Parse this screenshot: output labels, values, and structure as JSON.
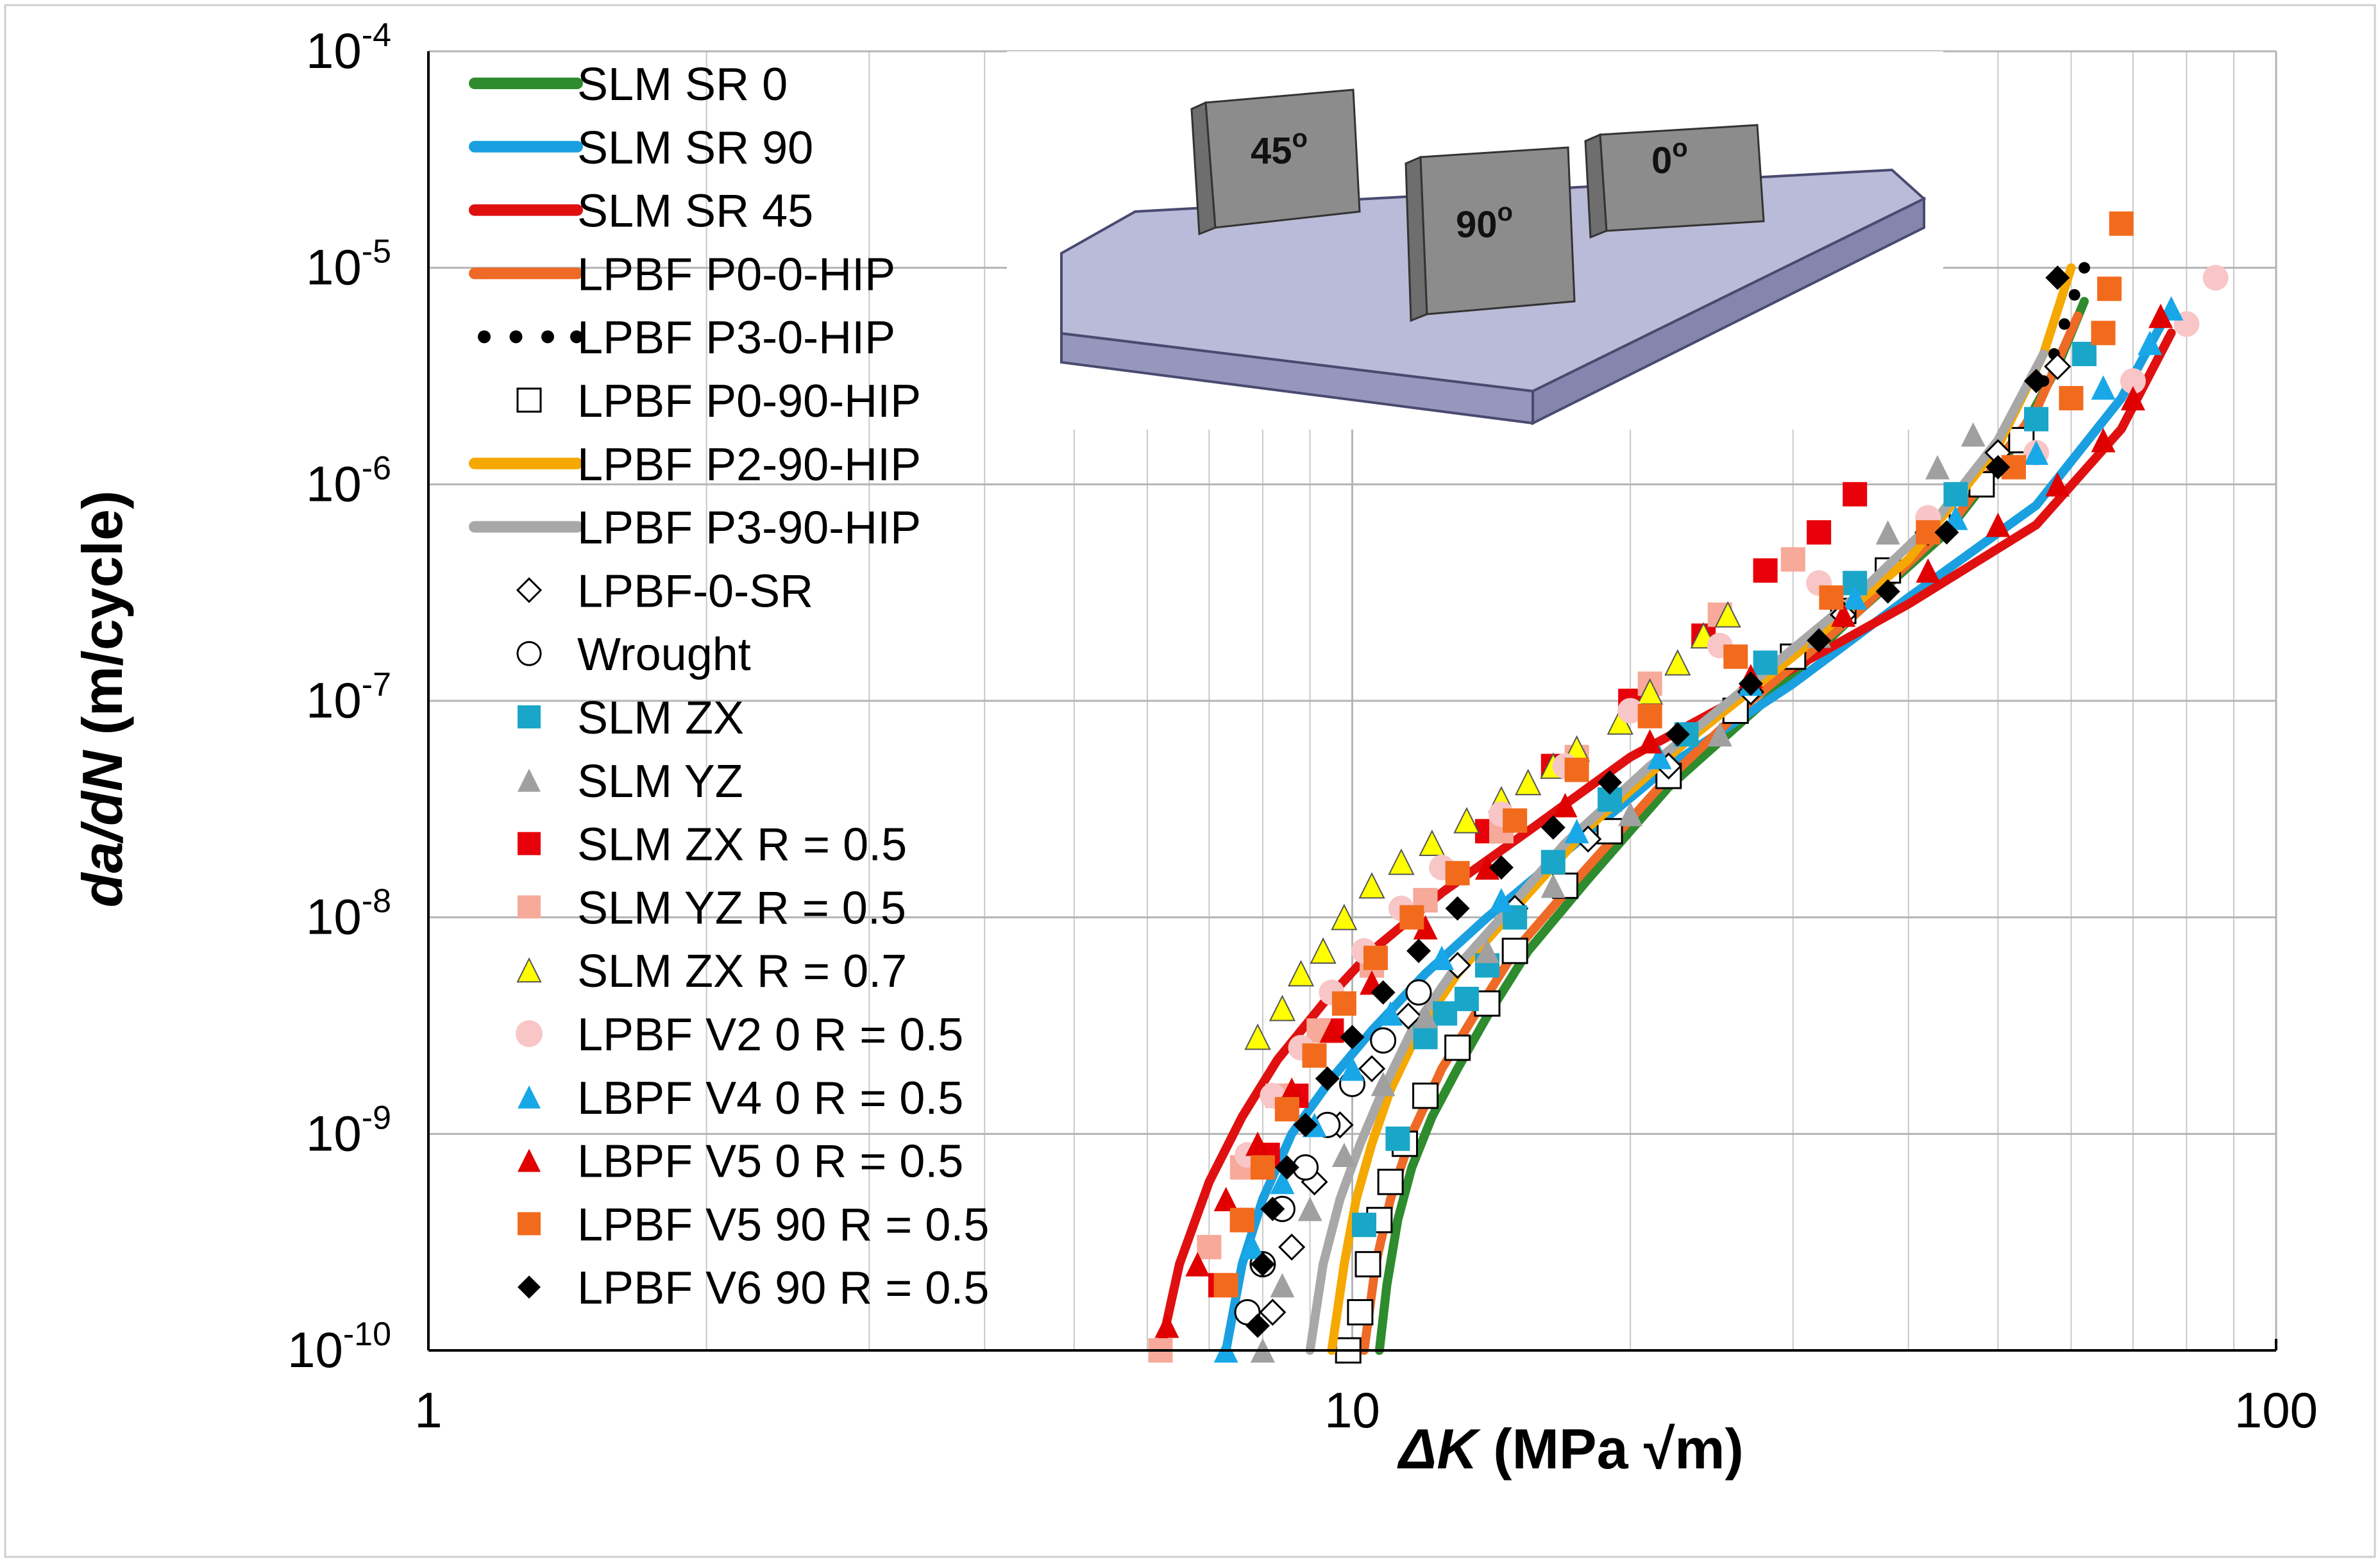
{
  "chart_data": {
    "type": "scatter",
    "title": "",
    "xlabel_main": "ΔK",
    "xlabel_unit": " (MPa √m)",
    "ylabel_italic": "da/dN",
    "ylabel_unit": " (m/cycle)",
    "xscale": "log",
    "yscale": "log",
    "xlim": [
      1,
      100
    ],
    "ylim": [
      1e-10,
      0.0001
    ],
    "x_ticks": [
      {
        "value": 1,
        "label": "1"
      },
      {
        "value": 10,
        "label": "10"
      },
      {
        "value": 100,
        "label": "100"
      }
    ],
    "y_ticks": [
      {
        "value": 1e-10,
        "mantissa": "10",
        "exp": "-10"
      },
      {
        "value": 1e-09,
        "mantissa": "10",
        "exp": "-9"
      },
      {
        "value": 1e-08,
        "mantissa": "10",
        "exp": "-8"
      },
      {
        "value": 1e-07,
        "mantissa": "10",
        "exp": "-7"
      },
      {
        "value": 1e-06,
        "mantissa": "10",
        "exp": "-6"
      },
      {
        "value": 1e-05,
        "mantissa": "10",
        "exp": "-5"
      },
      {
        "value": 0.0001,
        "mantissa": "10",
        "exp": "-4"
      }
    ],
    "grid": true,
    "legend_position": "top-left",
    "inset": {
      "description": "specimen build plate",
      "labels": [
        {
          "text": "45",
          "sup": "o"
        },
        {
          "text": "90",
          "sup": "o"
        },
        {
          "text": "0",
          "sup": "o"
        }
      ]
    },
    "series": [
      {
        "name": "SLM SR 0",
        "kind": "line",
        "color": "#2e8b2e",
        "x": [
          10.7,
          10.9,
          11.2,
          11.6,
          12.2,
          13.0,
          14.0,
          15.5,
          18.0,
          22.0,
          28.0,
          35.0,
          44.0,
          52.0,
          58.0,
          62.0
        ],
        "y": [
          1e-10,
          2e-10,
          4e-10,
          7e-10,
          1.2e-09,
          2e-09,
          3.5e-09,
          7e-09,
          1.5e-08,
          4e-08,
          1e-07,
          2.5e-07,
          6e-07,
          1.5e-06,
          3.5e-06,
          7e-06
        ]
      },
      {
        "name": "SLM SR 90",
        "kind": "line",
        "color": "#1aa0e0",
        "x": [
          7.3,
          7.6,
          8.0,
          8.6,
          9.5,
          10.5,
          12.0,
          14.0,
          17.0,
          22.0,
          30.0,
          40.0,
          55.0,
          68.0,
          76.0
        ],
        "y": [
          1e-10,
          2.5e-10,
          5e-10,
          1e-09,
          1.8e-09,
          3e-09,
          5.5e-09,
          1e-08,
          2e-08,
          5e-08,
          1.2e-07,
          3e-07,
          8e-07,
          2.5e-06,
          6e-06
        ]
      },
      {
        "name": "SLM SR 45",
        "kind": "line",
        "color": "#e01010",
        "x": [
          6.2,
          6.5,
          7.0,
          7.6,
          8.3,
          9.3,
          10.5,
          12.5,
          15.5,
          20.0,
          28.0,
          40.0,
          55.0,
          68.0,
          77.0
        ],
        "y": [
          1e-10,
          2.5e-10,
          6e-10,
          1.2e-09,
          2.2e-09,
          4e-09,
          7e-09,
          1.3e-08,
          2.5e-08,
          5.5e-08,
          1.2e-07,
          2.8e-07,
          6.5e-07,
          1.8e-06,
          5e-06
        ]
      },
      {
        "name": "LPBF P0-0-HIP",
        "kind": "line",
        "color": "#ee6a26",
        "x": [
          10.3,
          10.6,
          11.0,
          11.6,
          12.5,
          13.6,
          15.0,
          17.5,
          21.5,
          27.0,
          35.0,
          45.0,
          55.0,
          61.0
        ],
        "y": [
          1e-10,
          2.5e-10,
          5e-10,
          1e-09,
          2e-09,
          3.6e-09,
          7e-09,
          1.5e-08,
          4e-08,
          1e-07,
          2.5e-07,
          7e-07,
          2.2e-06,
          6e-06
        ]
      },
      {
        "name": "LPBF P3-0-HIP",
        "kind": "dotted",
        "color": "#000000",
        "x": [
          56.0,
          57.5,
          59.0,
          60.5,
          62.0
        ],
        "y": [
          3e-06,
          4e-06,
          5.5e-06,
          7.5e-06,
          1e-05
        ]
      },
      {
        "name": "LPBF P0-90-HIP",
        "kind": "marker",
        "marker": "square-open",
        "color": "#000000",
        "x": [
          9.9,
          10.2,
          10.4,
          10.7,
          11.0,
          11.4,
          12.0,
          13.0,
          14.0,
          15.0,
          17.0,
          19.0,
          22.0,
          26.0,
          30.0,
          34.0,
          38.0,
          43.0,
          48.0,
          53.0
        ],
        "y": [
          1e-10,
          1.5e-10,
          2.5e-10,
          4e-10,
          6e-10,
          9e-10,
          1.5e-09,
          2.5e-09,
          4e-09,
          7e-09,
          1.4e-08,
          2.5e-08,
          4.5e-08,
          9e-08,
          1.6e-07,
          2.6e-07,
          4e-07,
          6.5e-07,
          1e-06,
          1.6e-06
        ]
      },
      {
        "name": "LPBF P2-90-HIP",
        "kind": "line",
        "color": "#f5a800",
        "x": [
          9.5,
          9.8,
          10.1,
          10.5,
          11.0,
          11.8,
          13.0,
          15.0,
          18.0,
          23.0,
          30.0,
          40.0,
          50.0,
          56.0,
          60.0
        ],
        "y": [
          1e-10,
          2.5e-10,
          5e-10,
          9e-10,
          1.6e-09,
          3e-09,
          5.5e-09,
          1.1e-08,
          2.6e-08,
          6.5e-08,
          1.6e-07,
          4.5e-07,
          1.5e-06,
          4e-06,
          1e-05
        ]
      },
      {
        "name": "LPBF P3-90-HIP",
        "kind": "line",
        "color": "#a8a8a8",
        "x": [
          9.0,
          9.3,
          9.7,
          10.2,
          10.8,
          11.6,
          12.8,
          14.5,
          17.0,
          21.0,
          27.0,
          35.0,
          43.0,
          50.0,
          56.0
        ],
        "y": [
          1e-10,
          2.5e-10,
          5e-10,
          9e-10,
          1.6e-09,
          3e-09,
          5.5e-09,
          1e-08,
          2.2e-08,
          5e-08,
          1.2e-07,
          3e-07,
          7e-07,
          1.6e-06,
          4e-06
        ]
      },
      {
        "name": "LPBF-0-SR",
        "kind": "marker",
        "marker": "diamond-open",
        "color": "#000000",
        "x": [
          8.2,
          8.6,
          9.1,
          9.7,
          10.5,
          11.5,
          13.0,
          15.0,
          18.0,
          22.0,
          27.0,
          34.0,
          42.0,
          50.0,
          58.0
        ],
        "y": [
          1.5e-10,
          3e-10,
          6e-10,
          1.1e-09,
          2e-09,
          3.5e-09,
          6e-09,
          1.1e-08,
          2.3e-08,
          5e-08,
          1.1e-07,
          2.5e-07,
          6e-07,
          1.4e-06,
          3.5e-06
        ]
      },
      {
        "name": "Wrought",
        "kind": "marker",
        "marker": "circle-open",
        "color": "#000000",
        "x": [
          7.7,
          8.0,
          8.4,
          8.9,
          9.4,
          10.0,
          10.8,
          11.8
        ],
        "y": [
          1.5e-10,
          2.5e-10,
          4.5e-10,
          7e-10,
          1.1e-09,
          1.7e-09,
          2.7e-09,
          4.5e-09
        ]
      },
      {
        "name": "SLM ZX",
        "kind": "marker",
        "marker": "square",
        "color": "#1aa6c8",
        "x": [
          10.3,
          11.2,
          12.0,
          12.6,
          13.3,
          14.0,
          15.0,
          16.5,
          19.0,
          23.0,
          28.0,
          35.0,
          45.0,
          55.0,
          62.0
        ],
        "y": [
          3.8e-10,
          9.5e-10,
          2.8e-09,
          3.6e-09,
          4.2e-09,
          6e-09,
          1e-08,
          1.8e-08,
          3.5e-08,
          7e-08,
          1.5e-07,
          3.5e-07,
          9e-07,
          2e-06,
          4e-06
        ]
      },
      {
        "name": "SLM YZ",
        "kind": "marker",
        "marker": "triangle",
        "color": "#a0a0a0",
        "x": [
          8.0,
          8.4,
          9.0,
          9.8,
          10.8,
          12.0,
          14.0,
          16.5,
          20.0,
          25.0,
          32.0,
          38.0,
          43.0,
          47.0
        ],
        "y": [
          1e-10,
          2e-10,
          4.5e-10,
          8e-10,
          1.7e-09,
          3.5e-09,
          7e-09,
          1.4e-08,
          3e-08,
          7e-08,
          2e-07,
          6e-07,
          1.2e-06,
          1.7e-06
        ]
      },
      {
        "name": "SLM ZX R = 0.5",
        "kind": "marker",
        "marker": "square",
        "color": "#e8000a",
        "x": [
          7.2,
          7.6,
          8.1,
          8.7,
          9.5,
          10.5,
          12.0,
          14.0,
          16.5,
          20.0,
          24.0,
          28.0,
          32.0,
          35.0
        ],
        "y": [
          2e-10,
          4e-10,
          8e-10,
          1.5e-09,
          3e-09,
          6e-09,
          1.2e-08,
          2.5e-08,
          5e-08,
          1e-07,
          2e-07,
          4e-07,
          6e-07,
          9e-07
        ]
      },
      {
        "name": "SLM YZ R = 0.5",
        "kind": "marker",
        "marker": "square",
        "color": "#f7a99a",
        "x": [
          6.2,
          7.0,
          7.6,
          8.3,
          9.2,
          10.5,
          12.0,
          14.5,
          17.5,
          21.0,
          25.0,
          30.0
        ],
        "y": [
          1e-10,
          3e-10,
          7e-10,
          1.5e-09,
          3e-09,
          6e-09,
          1.2e-08,
          2.5e-08,
          5.5e-08,
          1.2e-07,
          2.5e-07,
          4.5e-07
        ]
      },
      {
        "name": "SLM ZX R = 0.7",
        "kind": "marker",
        "marker": "triangle-open-yellow",
        "color": "#ffff00",
        "x": [
          7.9,
          8.4,
          8.8,
          9.3,
          9.8,
          10.5,
          11.3,
          12.2,
          13.3,
          14.5,
          15.5,
          16.5,
          17.5,
          19.5,
          21.0,
          22.5,
          24.0,
          25.5
        ],
        "y": [
          2.8e-09,
          3.8e-09,
          5.5e-09,
          7e-09,
          1e-08,
          1.4e-08,
          1.8e-08,
          2.2e-08,
          2.8e-08,
          3.5e-08,
          4.2e-08,
          5e-08,
          6e-08,
          8e-08,
          1.1e-07,
          1.5e-07,
          2e-07,
          2.5e-07
        ]
      },
      {
        "name": "LPBF V2 0 R = 0.5",
        "kind": "marker",
        "marker": "circle",
        "color": "#f8c6c6",
        "x": [
          7.7,
          8.2,
          8.8,
          9.5,
          10.3,
          11.3,
          12.5,
          14.5,
          17.0,
          20.0,
          25.0,
          32.0,
          42.0,
          55.0,
          70.0,
          80.0,
          86.0
        ],
        "y": [
          8e-10,
          1.5e-09,
          2.5e-09,
          4.5e-09,
          7e-09,
          1.1e-08,
          1.7e-08,
          3e-08,
          5e-08,
          9e-08,
          1.8e-07,
          3.5e-07,
          7e-07,
          1.4e-06,
          3e-06,
          5.5e-06,
          9e-06
        ]
      },
      {
        "name": "LBPF V4 0 R = 0.5",
        "kind": "marker",
        "marker": "triangle",
        "color": "#18a8e8",
        "x": [
          7.3,
          7.8,
          8.4,
          9.1,
          10.0,
          11.0,
          12.5,
          14.5,
          17.5,
          21.5,
          27.0,
          35.0,
          45.0,
          55.0,
          65.0,
          73.0,
          77.0
        ],
        "y": [
          1e-10,
          3e-10,
          6e-10,
          1.1e-09,
          2e-09,
          3.6e-09,
          6.5e-09,
          1.2e-08,
          2.5e-08,
          5.5e-08,
          1.2e-07,
          3e-07,
          7e-07,
          1.4e-06,
          2.8e-06,
          4.5e-06,
          6.5e-06
        ]
      },
      {
        "name": "LBPF V5 0 R = 0.5",
        "kind": "marker",
        "marker": "triangle",
        "color": "#e00000",
        "x": [
          6.3,
          6.8,
          7.3,
          7.9,
          8.6,
          9.5,
          10.5,
          12.0,
          14.0,
          17.0,
          21.0,
          27.0,
          34.0,
          42.0,
          50.0,
          58.0,
          65.0,
          70.0,
          75.0
        ],
        "y": [
          1.3e-10,
          2.5e-10,
          5e-10,
          9e-10,
          1.6e-09,
          3e-09,
          5e-09,
          9e-09,
          1.7e-08,
          3.3e-08,
          6.5e-08,
          1.3e-07,
          2.5e-07,
          4e-07,
          6.5e-07,
          1e-06,
          1.6e-06,
          2.5e-06,
          6e-06
        ]
      },
      {
        "name": "LPBF V5 90  R = 0.5",
        "kind": "marker",
        "marker": "square",
        "color": "#f26b1d",
        "x": [
          7.3,
          7.6,
          8.0,
          8.5,
          9.1,
          9.8,
          10.6,
          11.6,
          13.0,
          15.0,
          17.5,
          21.0,
          26.0,
          33.0,
          42.0,
          52.0,
          60.0,
          65.0,
          66.0,
          68.0
        ],
        "y": [
          2e-10,
          4e-10,
          7e-10,
          1.3e-09,
          2.3e-09,
          4e-09,
          6.5e-09,
          1e-08,
          1.6e-08,
          2.8e-08,
          4.8e-08,
          8.5e-08,
          1.6e-07,
          3e-07,
          6e-07,
          1.2e-06,
          2.5e-06,
          5e-06,
          8e-06,
          1.6e-05
        ]
      },
      {
        "name": "LPBF V6 90 R = 0.5",
        "kind": "marker",
        "marker": "diamond",
        "color": "#000000",
        "x": [
          7.9,
          8.0,
          8.2,
          8.5,
          8.9,
          9.4,
          10.0,
          10.8,
          11.8,
          13.0,
          14.5,
          16.5,
          19.0,
          22.5,
          27.0,
          32.0,
          38.0,
          44.0,
          50.0,
          55.0,
          58.0
        ],
        "y": [
          1.3e-10,
          2.5e-10,
          4.5e-10,
          7e-10,
          1.1e-09,
          1.8e-09,
          2.8e-09,
          4.5e-09,
          7e-09,
          1.1e-08,
          1.7e-08,
          2.6e-08,
          4.2e-08,
          7e-08,
          1.2e-07,
          1.9e-07,
          3.2e-07,
          6e-07,
          1.2e-06,
          3e-06,
          9e-06
        ]
      }
    ]
  }
}
